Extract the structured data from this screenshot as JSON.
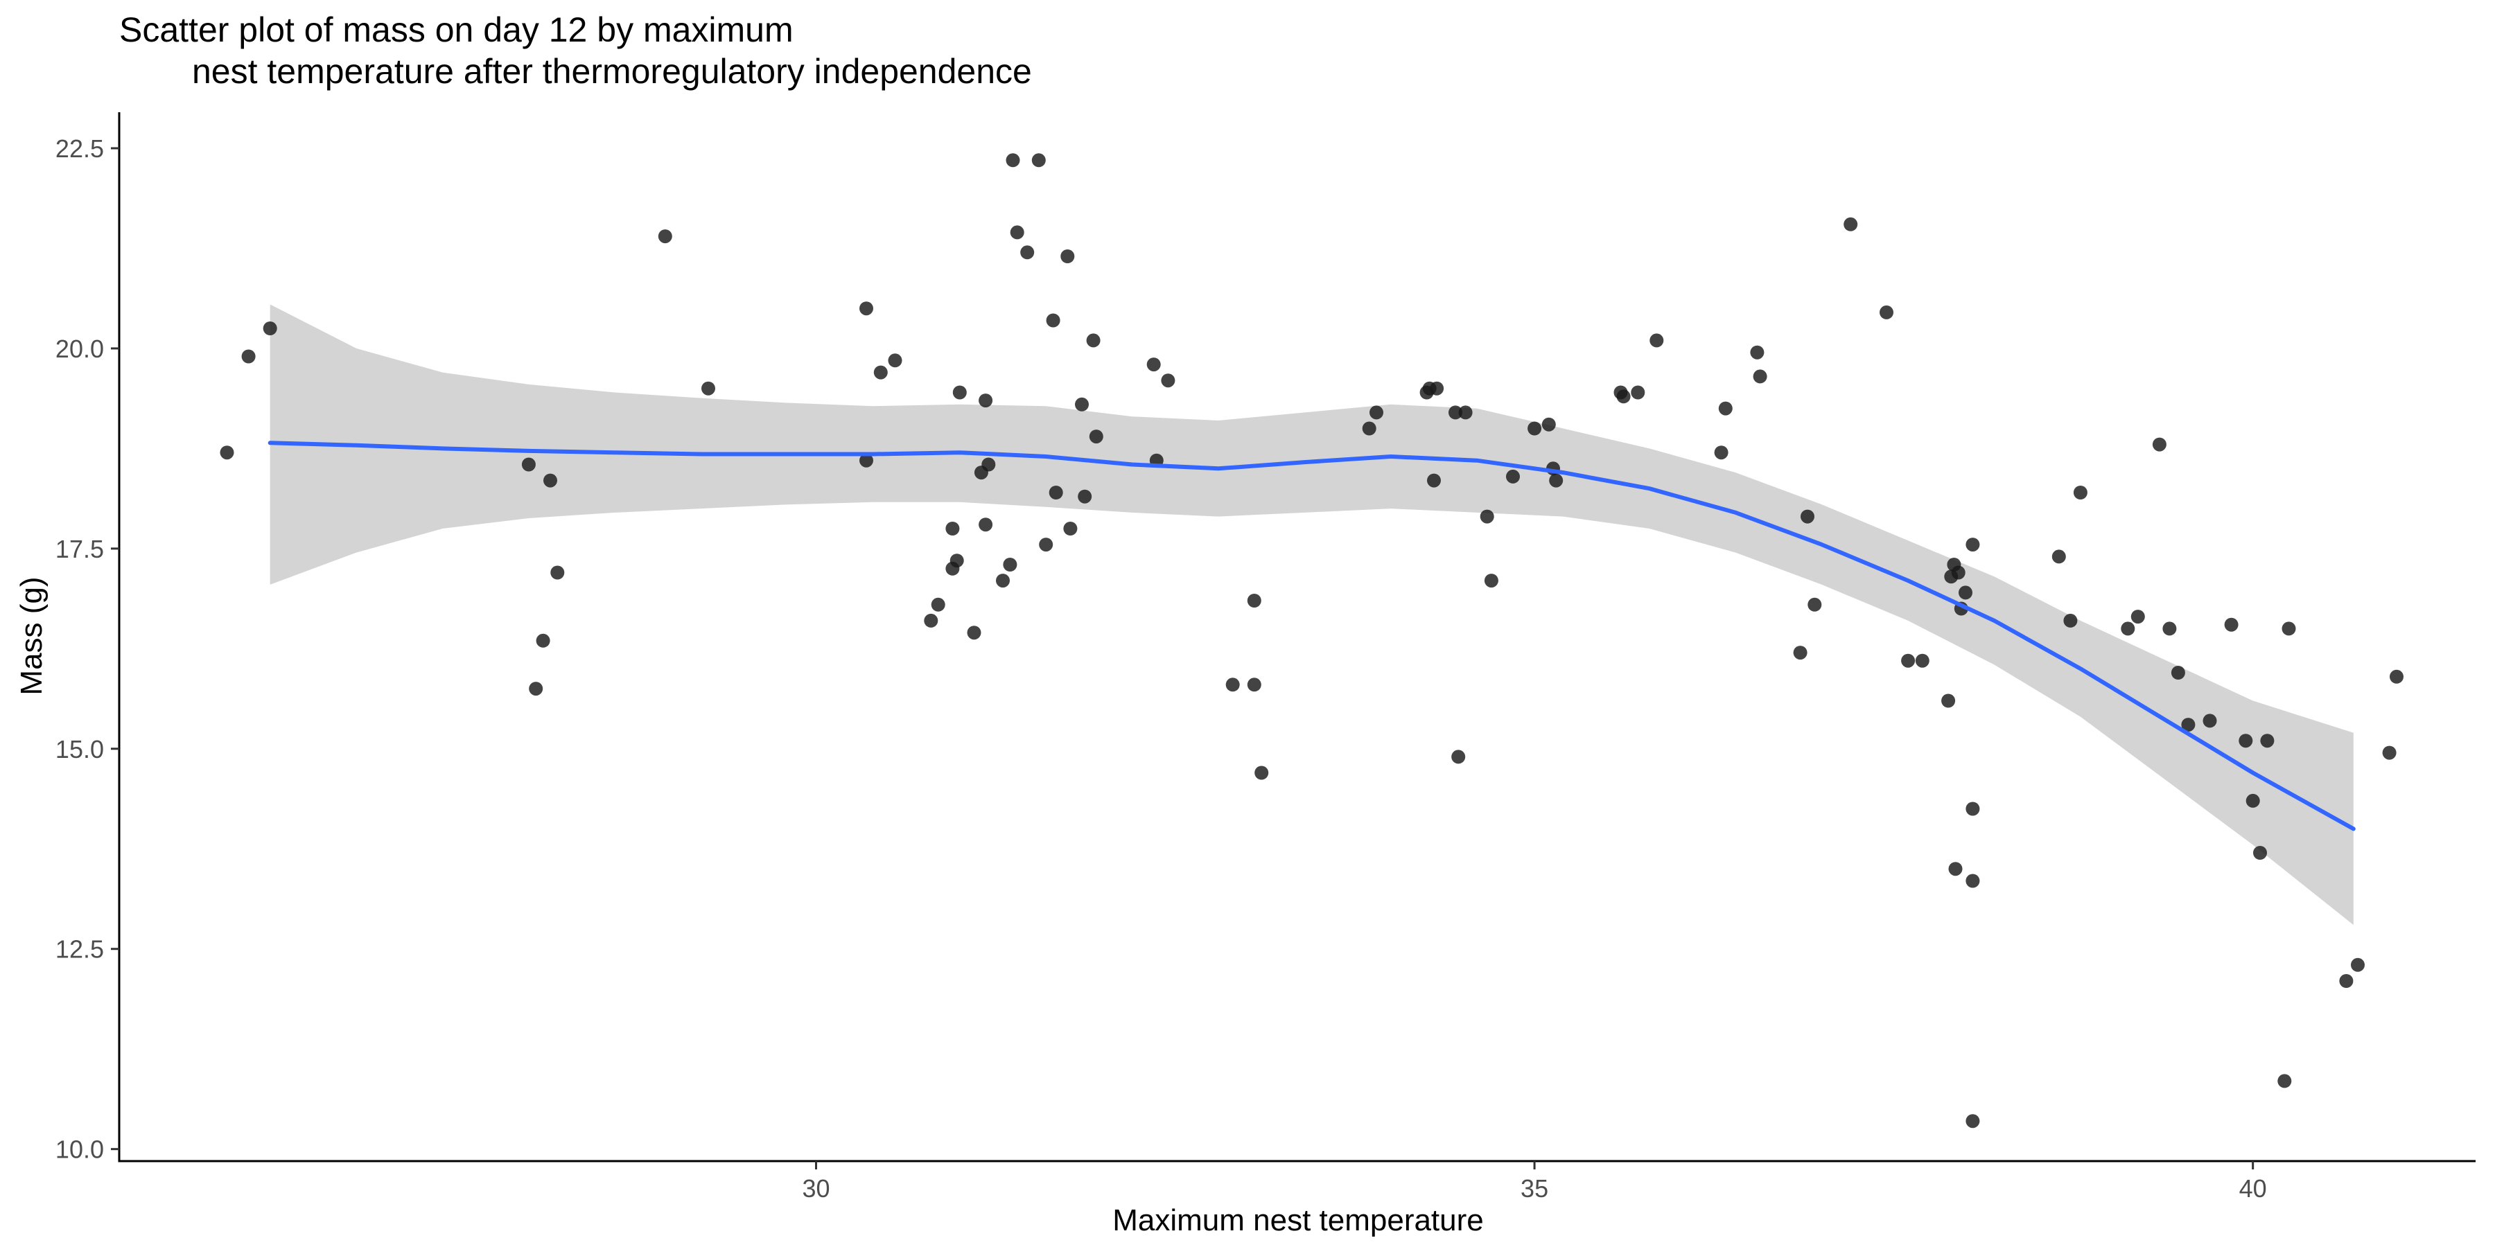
{
  "chart_data": {
    "type": "scatter",
    "title_line1": "Scatter plot of mass on day 12 by maximum",
    "title_line2": "nest temperature after thermoregulatory independence",
    "xlabel": "Maximum nest temperature",
    "ylabel": "Mass (g)",
    "xlim": [
      25.15,
      41.55
    ],
    "ylim": [
      9.85,
      22.95
    ],
    "x_ticks": [
      30,
      35,
      40
    ],
    "x_tick_labels": [
      "30",
      "35",
      "40"
    ],
    "y_ticks": [
      10,
      12.5,
      15,
      17.5,
      20,
      22.5
    ],
    "y_tick_labels": [
      "10.0",
      "12.5",
      "15.0",
      "17.5",
      "20.0",
      "22.5"
    ],
    "grid": false,
    "legend": "none",
    "colors": {
      "points": "#1a1a1a",
      "smooth_line": "#3366ff",
      "ribbon": "#d4d4d4",
      "axis": "#000000"
    },
    "points": [
      [
        25.9,
        18.7
      ],
      [
        26.05,
        19.9
      ],
      [
        26.2,
        20.25
      ],
      [
        28.0,
        18.55
      ],
      [
        28.05,
        15.75
      ],
      [
        28.1,
        16.35
      ],
      [
        28.15,
        18.35
      ],
      [
        28.2,
        17.2
      ],
      [
        28.95,
        21.4
      ],
      [
        29.25,
        19.5
      ],
      [
        30.35,
        20.5
      ],
      [
        30.35,
        18.6
      ],
      [
        30.45,
        19.7
      ],
      [
        30.55,
        19.85
      ],
      [
        30.8,
        16.6
      ],
      [
        30.85,
        16.8
      ],
      [
        30.95,
        17.75
      ],
      [
        30.95,
        17.25
      ],
      [
        30.98,
        17.35
      ],
      [
        31.0,
        19.45
      ],
      [
        31.1,
        16.45
      ],
      [
        31.15,
        18.45
      ],
      [
        31.18,
        19.35
      ],
      [
        31.18,
        17.8
      ],
      [
        31.2,
        18.55
      ],
      [
        31.3,
        17.1
      ],
      [
        31.35,
        17.3
      ],
      [
        31.37,
        22.35
      ],
      [
        31.4,
        21.45
      ],
      [
        31.47,
        21.2
      ],
      [
        31.55,
        22.35
      ],
      [
        31.6,
        17.55
      ],
      [
        31.65,
        20.35
      ],
      [
        31.67,
        18.2
      ],
      [
        31.75,
        21.15
      ],
      [
        31.77,
        17.75
      ],
      [
        31.85,
        19.3
      ],
      [
        31.87,
        18.15
      ],
      [
        31.93,
        20.1
      ],
      [
        31.95,
        18.9
      ],
      [
        32.35,
        19.8
      ],
      [
        32.37,
        18.6
      ],
      [
        32.45,
        19.6
      ],
      [
        32.9,
        15.8
      ],
      [
        33.05,
        16.85
      ],
      [
        33.05,
        15.8
      ],
      [
        33.1,
        14.7
      ],
      [
        33.85,
        19.0
      ],
      [
        33.9,
        19.2
      ],
      [
        34.25,
        19.45
      ],
      [
        34.27,
        19.5
      ],
      [
        34.3,
        18.35
      ],
      [
        34.32,
        19.5
      ],
      [
        34.45,
        19.2
      ],
      [
        34.47,
        14.9
      ],
      [
        34.52,
        19.2
      ],
      [
        34.67,
        17.9
      ],
      [
        34.7,
        17.1
      ],
      [
        34.85,
        18.4
      ],
      [
        35.0,
        19.0
      ],
      [
        35.1,
        19.05
      ],
      [
        35.13,
        18.5
      ],
      [
        35.15,
        18.35
      ],
      [
        35.6,
        19.45
      ],
      [
        35.62,
        19.4
      ],
      [
        35.72,
        19.45
      ],
      [
        35.85,
        20.1
      ],
      [
        36.3,
        18.7
      ],
      [
        36.33,
        19.25
      ],
      [
        36.55,
        19.95
      ],
      [
        36.57,
        19.65
      ],
      [
        36.85,
        16.2
      ],
      [
        36.9,
        17.9
      ],
      [
        36.95,
        16.8
      ],
      [
        37.2,
        21.55
      ],
      [
        37.45,
        20.45
      ],
      [
        37.6,
        16.1
      ],
      [
        37.7,
        16.1
      ],
      [
        37.88,
        15.6
      ],
      [
        37.9,
        17.15
      ],
      [
        37.92,
        17.3
      ],
      [
        37.95,
        17.2
      ],
      [
        37.93,
        13.5
      ],
      [
        37.97,
        16.75
      ],
      [
        38.0,
        16.95
      ],
      [
        38.05,
        17.55
      ],
      [
        38.05,
        14.25
      ],
      [
        38.05,
        13.35
      ],
      [
        38.05,
        10.35
      ],
      [
        38.65,
        17.4
      ],
      [
        38.73,
        16.6
      ],
      [
        38.8,
        18.2
      ],
      [
        39.13,
        16.5
      ],
      [
        39.2,
        16.65
      ],
      [
        39.35,
        18.8
      ],
      [
        39.42,
        16.5
      ],
      [
        39.48,
        15.95
      ],
      [
        39.55,
        15.3
      ],
      [
        39.7,
        15.35
      ],
      [
        39.85,
        16.55
      ],
      [
        39.95,
        15.1
      ],
      [
        40.0,
        14.35
      ],
      [
        40.05,
        13.7
      ],
      [
        40.1,
        15.1
      ],
      [
        40.22,
        10.85
      ],
      [
        40.25,
        16.5
      ],
      [
        40.65,
        12.1
      ],
      [
        40.73,
        12.3
      ],
      [
        40.95,
        14.95
      ],
      [
        41.0,
        15.9
      ]
    ],
    "smooth": {
      "x": [
        26.2,
        26.8,
        27.4,
        28.0,
        28.6,
        29.2,
        29.8,
        30.4,
        31.0,
        31.6,
        32.2,
        32.8,
        33.4,
        34.0,
        34.6,
        35.2,
        35.8,
        36.4,
        37.0,
        37.6,
        38.2,
        38.8,
        39.4,
        40.0,
        40.7
      ],
      "y": [
        18.82,
        18.79,
        18.75,
        18.72,
        18.7,
        18.68,
        18.68,
        18.68,
        18.7,
        18.65,
        18.55,
        18.5,
        18.58,
        18.65,
        18.6,
        18.45,
        18.25,
        17.95,
        17.55,
        17.1,
        16.6,
        16.0,
        15.35,
        14.7,
        14.0
      ],
      "lower": [
        17.05,
        17.45,
        17.75,
        17.88,
        17.95,
        18.0,
        18.05,
        18.08,
        18.08,
        18.02,
        17.95,
        17.9,
        17.95,
        18.0,
        17.95,
        17.9,
        17.75,
        17.45,
        17.05,
        16.6,
        16.05,
        15.4,
        14.6,
        13.8,
        12.8
      ],
      "upper": [
        20.55,
        20.0,
        19.7,
        19.55,
        19.45,
        19.38,
        19.32,
        19.28,
        19.3,
        19.28,
        19.15,
        19.1,
        19.2,
        19.3,
        19.25,
        19.0,
        18.75,
        18.45,
        18.05,
        17.6,
        17.15,
        16.6,
        16.1,
        15.6,
        15.2
      ]
    }
  }
}
